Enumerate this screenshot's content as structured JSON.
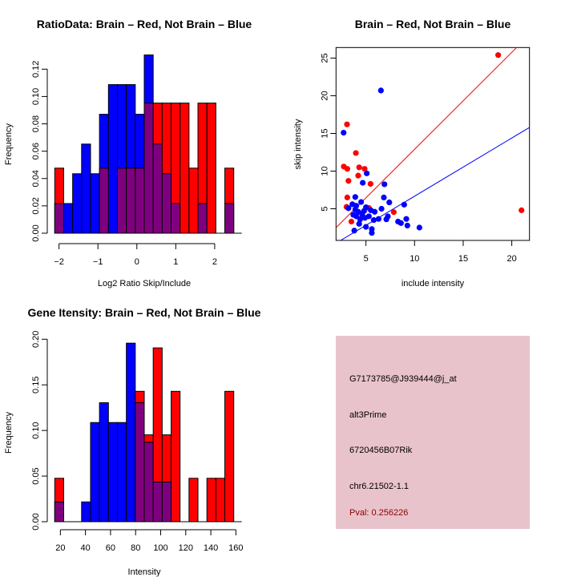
{
  "colors": {
    "brain": "#ff0000",
    "not_brain": "#0000ff",
    "overlap": "#7f007f",
    "info_bg": "#e9c3cb",
    "pval_text": "#8b0000"
  },
  "chart_data": [
    {
      "id": "ratio-hist",
      "type": "bar",
      "title": "RatioData: Brain – Red, Not Brain – Blue",
      "xlabel": "Log2 Ratio Skip/Include",
      "ylabel": "Frequency",
      "xlim": [
        -2.11,
        2.49
      ],
      "ylim": [
        0,
        0.12
      ],
      "xticks": [
        -2,
        -1,
        0,
        1,
        2
      ],
      "xtick_labels": [
        "-2",
        "-1",
        "0",
        "1",
        "2"
      ],
      "yticks": [
        0.0,
        0.02,
        0.04,
        0.06,
        0.08,
        0.1,
        0.12
      ],
      "ytick_labels": [
        "0.00",
        "0.02",
        "0.04",
        "0.06",
        "0.08",
        "0.10",
        "0.12"
      ],
      "bin_start": -2.11,
      "bin_width": 0.23,
      "grid": false,
      "series": [
        {
          "name": "Brain",
          "color": "red",
          "values": [
            0.0476,
            0,
            0,
            0,
            0,
            0.0476,
            0,
            0.0476,
            0.0476,
            0.0476,
            0.0952,
            0.0952,
            0.0952,
            0.0952,
            0.0952,
            0.0476,
            0.0952,
            0.0952,
            0,
            0.0476
          ]
        },
        {
          "name": "Not Brain",
          "color": "blue",
          "values": [
            0.0217,
            0.0217,
            0.0435,
            0.0652,
            0.0435,
            0.087,
            0.1087,
            0.1087,
            0.1087,
            0.087,
            0.1304,
            0.0652,
            0.0435,
            0.0217,
            0,
            0,
            0.0217,
            0,
            0,
            0.0217
          ]
        }
      ]
    },
    {
      "id": "scatter",
      "type": "scatter",
      "title": "Brain – Red, Not Brain – Blue",
      "xlabel": "include intensity",
      "ylabel": "skip intensity",
      "xlim": [
        1.92,
        21.82
      ],
      "ylim": [
        0.8,
        26.4
      ],
      "xticks": [
        5,
        10,
        15,
        20
      ],
      "xtick_labels": [
        "5",
        "10",
        "15",
        "20"
      ],
      "yticks": [
        5,
        10,
        15,
        20,
        25
      ],
      "ytick_labels": [
        "5",
        "10",
        "15",
        "20",
        "25"
      ],
      "grid": false,
      "series": [
        {
          "name": "Brain",
          "color": "red",
          "points": [
            [
              18.6,
              25.4
            ],
            [
              3.05,
              16.2
            ],
            [
              3.96,
              12.4
            ],
            [
              2.72,
              10.6
            ],
            [
              3.08,
              10.3
            ],
            [
              4.3,
              10.5
            ],
            [
              4.86,
              10.3
            ],
            [
              4.2,
              9.4
            ],
            [
              3.2,
              8.7
            ],
            [
              5.47,
              8.3
            ],
            [
              3.08,
              6.5
            ],
            [
              3.0,
              5.25
            ],
            [
              5.3,
              5.1
            ],
            [
              7.86,
              4.55
            ],
            [
              21.0,
              4.8
            ],
            [
              3.5,
              3.3
            ],
            [
              4.6,
              3.9
            ]
          ]
        },
        {
          "name": "Not Brain",
          "color": "blue",
          "points": [
            [
              6.54,
              20.7
            ],
            [
              2.7,
              15.1
            ],
            [
              5.08,
              9.7
            ],
            [
              4.67,
              8.45
            ],
            [
              6.9,
              8.25
            ],
            [
              6.84,
              6.5
            ],
            [
              7.4,
              5.85
            ],
            [
              8.93,
              5.55
            ],
            [
              6.6,
              5.0
            ],
            [
              3.9,
              6.56
            ],
            [
              3.2,
              5.07
            ],
            [
              3.6,
              5.6
            ],
            [
              4.0,
              5.4
            ],
            [
              4.5,
              5.9
            ],
            [
              3.9,
              4.9
            ],
            [
              4.2,
              4.6
            ],
            [
              4.6,
              4.3
            ],
            [
              5.0,
              5.2
            ],
            [
              5.5,
              4.8
            ],
            [
              5.9,
              4.6
            ],
            [
              3.7,
              4.2
            ],
            [
              4.4,
              3.6
            ],
            [
              4.9,
              3.8
            ],
            [
              5.3,
              4.0
            ],
            [
              6.3,
              3.65
            ],
            [
              7.25,
              4.0
            ],
            [
              7.1,
              3.6
            ],
            [
              8.3,
              3.3
            ],
            [
              8.6,
              3.1
            ],
            [
              9.15,
              3.65
            ],
            [
              9.26,
              2.77
            ],
            [
              10.5,
              2.5
            ],
            [
              4.3,
              3.0
            ],
            [
              5.0,
              2.6
            ],
            [
              5.6,
              2.3
            ],
            [
              3.8,
              2.1
            ],
            [
              5.6,
              1.8
            ],
            [
              4.0,
              4.0
            ],
            [
              4.8,
              4.7
            ],
            [
              5.8,
              3.5
            ]
          ]
        }
      ],
      "lines": [
        {
          "name": "Brain fit",
          "color": "red",
          "intercept": 0.02,
          "slope": 1.287
        },
        {
          "name": "Not Brain fit",
          "color": "blue",
          "intercept": -1.05,
          "slope": 0.772
        }
      ]
    },
    {
      "id": "intensity-hist",
      "type": "bar",
      "title": "Gene Itensity: Brain – Red, Not Brain – Blue",
      "xlabel": "Intensity",
      "ylabel": "Frequency",
      "xlim": [
        15.5,
        158.3
      ],
      "ylim": [
        0,
        0.2
      ],
      "xticks": [
        20,
        40,
        60,
        80,
        100,
        120,
        140,
        160
      ],
      "xtick_labels": [
        "20",
        "40",
        "60",
        "80",
        "100",
        "120",
        "140",
        "160"
      ],
      "yticks": [
        0.0,
        0.05,
        0.1,
        0.15,
        0.2
      ],
      "ytick_labels": [
        "0.00",
        "0.05",
        "0.10",
        "0.15",
        "0.20"
      ],
      "bin_start": 15.5,
      "bin_width": 7.14,
      "grid": false,
      "series": [
        {
          "name": "Brain",
          "color": "red",
          "values": [
            0.0476,
            0,
            0,
            0,
            0,
            0,
            0,
            0,
            0,
            0.1429,
            0.0952,
            0.1905,
            0.0952,
            0.1429,
            0,
            0.0476,
            0,
            0.0476,
            0.0476,
            0.1429
          ]
        },
        {
          "name": "Not Brain",
          "color": "blue",
          "values": [
            0.0217,
            0,
            0,
            0.0217,
            0.1087,
            0.1304,
            0.1087,
            0.1087,
            0.1957,
            0.1304,
            0.087,
            0.0435,
            0.0435,
            0,
            0,
            0,
            0,
            0,
            0,
            0
          ]
        }
      ]
    }
  ],
  "info_box": {
    "probe_id": "G7173785@J939444@j_at",
    "event_type": "alt3Prime",
    "gene": "6720456B07Rik",
    "location": "chr6.21502-1.1",
    "pval": "Pval: 0.256226"
  }
}
